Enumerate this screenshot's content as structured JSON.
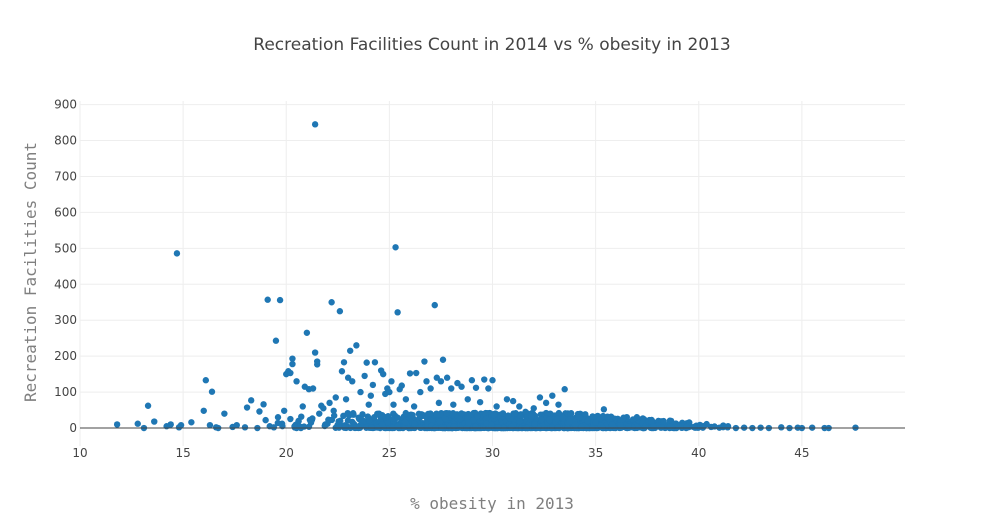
{
  "chart_data": {
    "type": "scatter",
    "title": "Recreation Facilities Count in 2014 vs % obesity in 2013",
    "xlabel": "% obesity in 2013",
    "ylabel": "Recreation Facilities Count",
    "xlim": [
      10,
      50
    ],
    "ylim": [
      -50,
      910
    ],
    "x_ticks": [
      10,
      15,
      20,
      25,
      30,
      35,
      40,
      45
    ],
    "y_ticks": [
      0,
      100,
      200,
      300,
      400,
      500,
      600,
      700,
      800,
      900
    ],
    "grid": true,
    "legend": "none",
    "color": "#1f77b4",
    "points": [
      [
        11.8,
        10
      ],
      [
        12.8,
        12
      ],
      [
        13.1,
        0
      ],
      [
        13.3,
        62
      ],
      [
        13.6,
        18
      ],
      [
        14.2,
        5
      ],
      [
        14.4,
        10
      ],
      [
        14.7,
        486
      ],
      [
        14.8,
        2
      ],
      [
        14.9,
        8
      ],
      [
        15.4,
        16
      ],
      [
        16.0,
        48
      ],
      [
        16.1,
        133
      ],
      [
        16.3,
        8
      ],
      [
        16.4,
        101
      ],
      [
        16.6,
        2
      ],
      [
        16.7,
        0
      ],
      [
        17.0,
        40
      ],
      [
        17.4,
        3
      ],
      [
        17.6,
        8
      ],
      [
        18.0,
        2
      ],
      [
        18.1,
        57
      ],
      [
        18.3,
        77
      ],
      [
        18.6,
        0
      ],
      [
        18.7,
        46
      ],
      [
        18.9,
        66
      ],
      [
        19.0,
        22
      ],
      [
        19.1,
        357
      ],
      [
        19.2,
        5
      ],
      [
        19.4,
        2
      ],
      [
        19.5,
        243
      ],
      [
        19.6,
        30
      ],
      [
        19.7,
        356
      ],
      [
        19.8,
        12
      ],
      [
        19.9,
        48
      ],
      [
        20.0,
        150
      ],
      [
        20.1,
        158
      ],
      [
        20.2,
        25
      ],
      [
        20.2,
        153
      ],
      [
        20.3,
        193
      ],
      [
        20.3,
        178
      ],
      [
        20.4,
        5
      ],
      [
        20.5,
        130
      ],
      [
        20.6,
        20
      ],
      [
        20.7,
        3
      ],
      [
        20.8,
        60
      ],
      [
        20.9,
        115
      ],
      [
        21.0,
        265
      ],
      [
        21.1,
        108
      ],
      [
        21.2,
        15
      ],
      [
        21.3,
        110
      ],
      [
        21.4,
        845
      ],
      [
        21.4,
        210
      ],
      [
        21.5,
        185
      ],
      [
        21.5,
        177
      ],
      [
        21.6,
        40
      ],
      [
        21.7,
        62
      ],
      [
        21.8,
        55
      ],
      [
        22.0,
        12
      ],
      [
        22.1,
        70
      ],
      [
        22.2,
        350
      ],
      [
        22.3,
        48
      ],
      [
        22.4,
        85
      ],
      [
        22.6,
        325
      ],
      [
        22.7,
        158
      ],
      [
        22.8,
        183
      ],
      [
        22.9,
        80
      ],
      [
        23.0,
        140
      ],
      [
        23.1,
        215
      ],
      [
        23.2,
        130
      ],
      [
        23.4,
        230
      ],
      [
        23.6,
        100
      ],
      [
        23.8,
        145
      ],
      [
        23.9,
        182
      ],
      [
        24.0,
        65
      ],
      [
        24.1,
        90
      ],
      [
        24.2,
        120
      ],
      [
        24.3,
        183
      ],
      [
        24.5,
        40
      ],
      [
        24.6,
        160
      ],
      [
        24.7,
        150
      ],
      [
        24.8,
        95
      ],
      [
        24.9,
        110
      ],
      [
        25.0,
        100
      ],
      [
        25.1,
        130
      ],
      [
        25.2,
        65
      ],
      [
        25.3,
        503
      ],
      [
        25.4,
        322
      ],
      [
        25.5,
        108
      ],
      [
        25.6,
        118
      ],
      [
        25.8,
        80
      ],
      [
        26.0,
        152
      ],
      [
        26.2,
        60
      ],
      [
        26.3,
        153
      ],
      [
        26.5,
        100
      ],
      [
        26.7,
        185
      ],
      [
        26.8,
        130
      ],
      [
        27.0,
        110
      ],
      [
        27.2,
        342
      ],
      [
        27.3,
        140
      ],
      [
        27.4,
        70
      ],
      [
        27.5,
        130
      ],
      [
        27.6,
        190
      ],
      [
        27.8,
        140
      ],
      [
        28.0,
        110
      ],
      [
        28.1,
        65
      ],
      [
        28.3,
        125
      ],
      [
        28.5,
        115
      ],
      [
        28.8,
        80
      ],
      [
        29.0,
        133
      ],
      [
        29.2,
        112
      ],
      [
        29.4,
        72
      ],
      [
        29.6,
        135
      ],
      [
        29.8,
        110
      ],
      [
        30.0,
        133
      ],
      [
        30.2,
        60
      ],
      [
        30.5,
        40
      ],
      [
        30.7,
        80
      ],
      [
        31.0,
        75
      ],
      [
        31.3,
        60
      ],
      [
        31.6,
        45
      ],
      [
        32.0,
        55
      ],
      [
        32.3,
        85
      ],
      [
        32.6,
        70
      ],
      [
        32.9,
        90
      ],
      [
        33.2,
        65
      ],
      [
        33.5,
        108
      ],
      [
        33.8,
        40
      ],
      [
        34.2,
        30
      ],
      [
        34.6,
        20
      ],
      [
        35.0,
        15
      ],
      [
        35.4,
        52
      ],
      [
        35.8,
        10
      ],
      [
        36.2,
        8
      ],
      [
        36.6,
        5
      ],
      [
        37.0,
        30
      ],
      [
        37.4,
        3
      ],
      [
        37.8,
        5
      ],
      [
        38.2,
        2
      ],
      [
        38.6,
        4
      ],
      [
        39.0,
        8
      ],
      [
        39.4,
        3
      ],
      [
        39.8,
        2
      ],
      [
        40.2,
        1
      ],
      [
        40.6,
        3
      ],
      [
        41.0,
        1
      ],
      [
        41.4,
        2
      ],
      [
        41.8,
        0
      ],
      [
        42.2,
        1
      ],
      [
        42.6,
        0
      ],
      [
        43.0,
        1
      ],
      [
        43.4,
        0
      ],
      [
        44.0,
        2
      ],
      [
        44.4,
        0
      ],
      [
        44.8,
        1
      ],
      [
        45.0,
        0
      ],
      [
        45.5,
        1
      ],
      [
        46.1,
        0
      ],
      [
        46.3,
        0
      ],
      [
        47.6,
        1
      ]
    ],
    "dense_band": {
      "x_min": 19.0,
      "x_max": 43.0,
      "count": 1400,
      "seed": 7
    }
  }
}
